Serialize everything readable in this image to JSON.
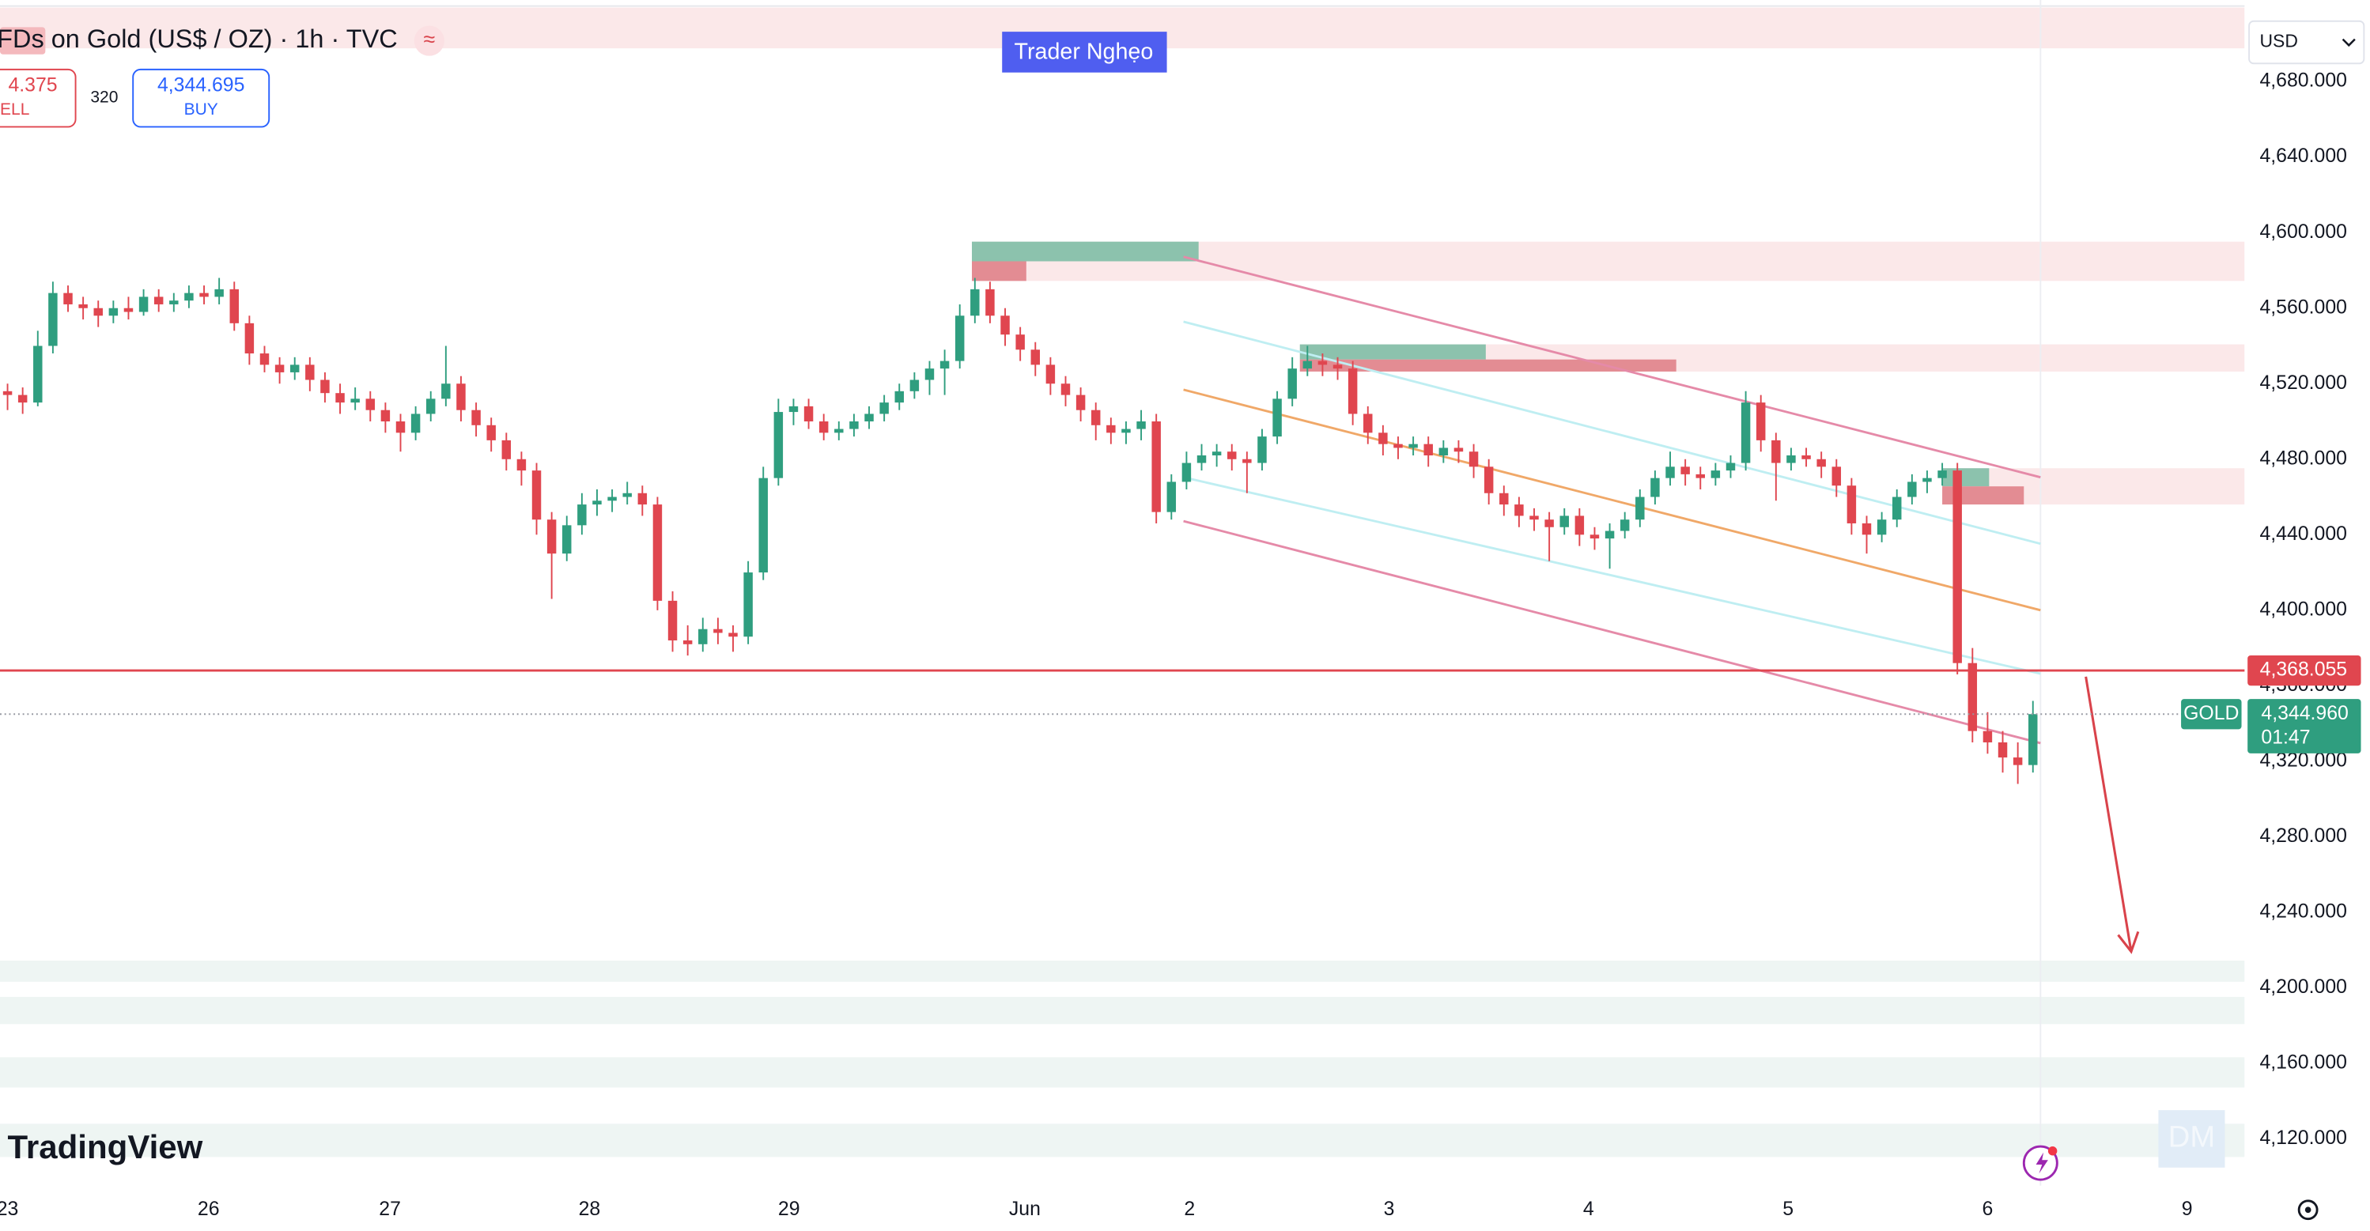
{
  "header": {
    "title": "FDs on Gold (US$ / OZ) · 1h · TVC",
    "sell_price": "4.375",
    "sell_label": "ELL",
    "spread": "320",
    "buy_price": "4,344.695",
    "buy_label": "BUY",
    "badge": "Trader Nghẹo",
    "currency": "USD",
    "logo": "TradingView",
    "watermark": "DM"
  },
  "chart_data": {
    "type": "candlestick",
    "up_color": "#2f9e7f",
    "down_color": "#e0464f",
    "grid": false,
    "xlim": [
      0,
      148.5
    ],
    "ylim": [
      4095.2,
      4723.2
    ],
    "xticks": [
      {
        "value": 0.5,
        "label": "23"
      },
      {
        "value": 13.8,
        "label": "26"
      },
      {
        "value": 25.8,
        "label": "27"
      },
      {
        "value": 39,
        "label": "28"
      },
      {
        "value": 52.2,
        "label": "29"
      },
      {
        "value": 67.8,
        "label": "Jun"
      },
      {
        "value": 78.7,
        "label": "2"
      },
      {
        "value": 91.9,
        "label": "3"
      },
      {
        "value": 105.1,
        "label": "4"
      },
      {
        "value": 118.3,
        "label": "5"
      },
      {
        "value": 131.5,
        "label": "6"
      },
      {
        "value": 144.7,
        "label": "9"
      }
    ],
    "yticks": [
      {
        "value": 4680,
        "label": "4,680.000"
      },
      {
        "value": 4640,
        "label": "4,640.000"
      },
      {
        "value": 4600,
        "label": "4,600.000"
      },
      {
        "value": 4560,
        "label": "4,560.000"
      },
      {
        "value": 4520,
        "label": "4,520.000"
      },
      {
        "value": 4480,
        "label": "4,480.000"
      },
      {
        "value": 4440,
        "label": "4,440.000"
      },
      {
        "value": 4400,
        "label": "4,400.000"
      },
      {
        "value": 4360,
        "label": "4,360.000"
      },
      {
        "value": 4320,
        "label": "4,320.000"
      },
      {
        "value": 4280,
        "label": "4,280.000"
      },
      {
        "value": 4240,
        "label": "4,240.000"
      },
      {
        "value": 4200,
        "label": "4,200.000"
      },
      {
        "value": 4160,
        "label": "4,160.000"
      },
      {
        "value": 4120,
        "label": "4,120.000"
      }
    ],
    "ohlc": [
      [
        4516,
        4520,
        4506,
        4514
      ],
      [
        4514,
        4518,
        4504,
        4510
      ],
      [
        4510,
        4548,
        4508,
        4540
      ],
      [
        4540,
        4574,
        4536,
        4568
      ],
      [
        4568,
        4572,
        4558,
        4562
      ],
      [
        4562,
        4566,
        4554,
        4560
      ],
      [
        4560,
        4564,
        4550,
        4556
      ],
      [
        4556,
        4564,
        4552,
        4560
      ],
      [
        4560,
        4566,
        4554,
        4558
      ],
      [
        4558,
        4570,
        4556,
        4566
      ],
      [
        4566,
        4570,
        4558,
        4562
      ],
      [
        4562,
        4568,
        4558,
        4564
      ],
      [
        4564,
        4572,
        4560,
        4568
      ],
      [
        4568,
        4572,
        4562,
        4566
      ],
      [
        4566,
        4576,
        4562,
        4570
      ],
      [
        4570,
        4574,
        4548,
        4552
      ],
      [
        4552,
        4556,
        4530,
        4536
      ],
      [
        4536,
        4540,
        4526,
        4530
      ],
      [
        4530,
        4534,
        4520,
        4526
      ],
      [
        4526,
        4534,
        4522,
        4530
      ],
      [
        4530,
        4534,
        4516,
        4522
      ],
      [
        4522,
        4526,
        4510,
        4515
      ],
      [
        4515,
        4520,
        4504,
        4510
      ],
      [
        4510,
        4518,
        4506,
        4512
      ],
      [
        4512,
        4516,
        4500,
        4506
      ],
      [
        4506,
        4510,
        4494,
        4500
      ],
      [
        4500,
        4504,
        4484,
        4494
      ],
      [
        4494,
        4508,
        4490,
        4504
      ],
      [
        4504,
        4516,
        4500,
        4512
      ],
      [
        4512,
        4540,
        4508,
        4520
      ],
      [
        4520,
        4524,
        4500,
        4506
      ],
      [
        4506,
        4510,
        4492,
        4498
      ],
      [
        4498,
        4502,
        4484,
        4490
      ],
      [
        4490,
        4494,
        4474,
        4480
      ],
      [
        4480,
        4484,
        4466,
        4474
      ],
      [
        4474,
        4478,
        4440,
        4448
      ],
      [
        4448,
        4452,
        4406,
        4430
      ],
      [
        4430,
        4450,
        4426,
        4445
      ],
      [
        4445,
        4462,
        4440,
        4456
      ],
      [
        4456,
        4464,
        4450,
        4458
      ],
      [
        4458,
        4464,
        4452,
        4460
      ],
      [
        4460,
        4468,
        4456,
        4462
      ],
      [
        4462,
        4466,
        4450,
        4456
      ],
      [
        4456,
        4460,
        4400,
        4405
      ],
      [
        4405,
        4410,
        4378,
        4384
      ],
      [
        4384,
        4392,
        4376,
        4382
      ],
      [
        4382,
        4396,
        4378,
        4390
      ],
      [
        4390,
        4396,
        4382,
        4388
      ],
      [
        4388,
        4392,
        4378,
        4386
      ],
      [
        4386,
        4426,
        4382,
        4420
      ],
      [
        4420,
        4476,
        4416,
        4470
      ],
      [
        4470,
        4512,
        4466,
        4505
      ],
      [
        4505,
        4512,
        4498,
        4508
      ],
      [
        4508,
        4512,
        4496,
        4500
      ],
      [
        4500,
        4504,
        4490,
        4494
      ],
      [
        4494,
        4500,
        4490,
        4496
      ],
      [
        4496,
        4504,
        4492,
        4500
      ],
      [
        4500,
        4508,
        4496,
        4504
      ],
      [
        4504,
        4514,
        4500,
        4510
      ],
      [
        4510,
        4520,
        4506,
        4516
      ],
      [
        4516,
        4526,
        4512,
        4522
      ],
      [
        4522,
        4532,
        4514,
        4528
      ],
      [
        4528,
        4538,
        4514,
        4532
      ],
      [
        4532,
        4562,
        4528,
        4556
      ],
      [
        4556,
        4576,
        4552,
        4570
      ],
      [
        4570,
        4574,
        4552,
        4556
      ],
      [
        4556,
        4560,
        4540,
        4546
      ],
      [
        4546,
        4550,
        4532,
        4538
      ],
      [
        4538,
        4542,
        4524,
        4530
      ],
      [
        4530,
        4534,
        4514,
        4520
      ],
      [
        4520,
        4524,
        4508,
        4514
      ],
      [
        4514,
        4518,
        4500,
        4506
      ],
      [
        4506,
        4510,
        4490,
        4498
      ],
      [
        4498,
        4502,
        4488,
        4494
      ],
      [
        4494,
        4500,
        4488,
        4496
      ],
      [
        4496,
        4506,
        4490,
        4500
      ],
      [
        4500,
        4504,
        4446,
        4452
      ],
      [
        4452,
        4472,
        4448,
        4468
      ],
      [
        4468,
        4484,
        4464,
        4478
      ],
      [
        4478,
        4488,
        4474,
        4482
      ],
      [
        4482,
        4488,
        4476,
        4484
      ],
      [
        4484,
        4488,
        4474,
        4480
      ],
      [
        4480,
        4484,
        4462,
        4478
      ],
      [
        4478,
        4496,
        4474,
        4492
      ],
      [
        4492,
        4516,
        4488,
        4512
      ],
      [
        4512,
        4534,
        4508,
        4528
      ],
      [
        4528,
        4540,
        4524,
        4532
      ],
      [
        4532,
        4536,
        4524,
        4530
      ],
      [
        4530,
        4534,
        4522,
        4528
      ],
      [
        4528,
        4532,
        4498,
        4504
      ],
      [
        4504,
        4508,
        4488,
        4494
      ],
      [
        4494,
        4498,
        4482,
        4488
      ],
      [
        4488,
        4492,
        4480,
        4486
      ],
      [
        4486,
        4492,
        4482,
        4488
      ],
      [
        4488,
        4492,
        4476,
        4482
      ],
      [
        4482,
        4490,
        4478,
        4486
      ],
      [
        4486,
        4490,
        4478,
        4484
      ],
      [
        4484,
        4488,
        4470,
        4476
      ],
      [
        4476,
        4480,
        4456,
        4462
      ],
      [
        4462,
        4466,
        4450,
        4456
      ],
      [
        4456,
        4460,
        4444,
        4450
      ],
      [
        4450,
        4454,
        4442,
        4448
      ],
      [
        4448,
        4452,
        4426,
        4444
      ],
      [
        4444,
        4454,
        4440,
        4450
      ],
      [
        4450,
        4454,
        4434,
        4440
      ],
      [
        4440,
        4444,
        4432,
        4438
      ],
      [
        4438,
        4446,
        4422,
        4442
      ],
      [
        4442,
        4452,
        4438,
        4448
      ],
      [
        4448,
        4464,
        4444,
        4460
      ],
      [
        4460,
        4474,
        4456,
        4470
      ],
      [
        4470,
        4484,
        4466,
        4476
      ],
      [
        4476,
        4480,
        4466,
        4472
      ],
      [
        4472,
        4476,
        4464,
        4470
      ],
      [
        4470,
        4478,
        4466,
        4474
      ],
      [
        4474,
        4482,
        4470,
        4478
      ],
      [
        4478,
        4516,
        4474,
        4510
      ],
      [
        4510,
        4514,
        4484,
        4490
      ],
      [
        4490,
        4494,
        4458,
        4478
      ],
      [
        4478,
        4486,
        4474,
        4482
      ],
      [
        4482,
        4486,
        4476,
        4480
      ],
      [
        4480,
        4484,
        4470,
        4476
      ],
      [
        4476,
        4480,
        4460,
        4466
      ],
      [
        4466,
        4470,
        4440,
        4446
      ],
      [
        4446,
        4450,
        4430,
        4440
      ],
      [
        4440,
        4452,
        4436,
        4448
      ],
      [
        4448,
        4464,
        4444,
        4460
      ],
      [
        4460,
        4472,
        4456,
        4468
      ],
      [
        4468,
        4474,
        4462,
        4470
      ],
      [
        4470,
        4478,
        4466,
        4474
      ],
      [
        4474,
        4478,
        4366,
        4372
      ],
      [
        4372,
        4380,
        4330,
        4336
      ],
      [
        4336,
        4346,
        4324,
        4330
      ],
      [
        4330,
        4336,
        4314,
        4322
      ],
      [
        4322,
        4330,
        4308,
        4318
      ],
      [
        4318,
        4352,
        4314,
        4344.96
      ]
    ],
    "zones": [
      {
        "x": [
          0,
          148.5
        ],
        "y": [
          4697.6,
          4719.2
        ],
        "color": "#fbe8e9"
      },
      {
        "x": [
          64.3,
          148.5
        ],
        "y": [
          4574.4,
          4595.2
        ],
        "color": "#fbe8e9"
      },
      {
        "x": [
          64.3,
          79.3
        ],
        "y": [
          4584.8,
          4595.2
        ],
        "color": "#8cc2ad"
      },
      {
        "x": [
          64.3,
          67.9
        ],
        "y": [
          4574.4,
          4584.8
        ],
        "color": "#e38c93"
      },
      {
        "x": [
          86,
          148.5
        ],
        "y": [
          4526.4,
          4540.8
        ],
        "color": "#fbe8e9"
      },
      {
        "x": [
          86,
          98.3
        ],
        "y": [
          4532.8,
          4540.8
        ],
        "color": "#8cc2ad"
      },
      {
        "x": [
          86,
          110.9
        ],
        "y": [
          4526.4,
          4532.8
        ],
        "color": "#e38c93"
      },
      {
        "x": [
          128.5,
          148.5
        ],
        "y": [
          4456,
          4475.2
        ],
        "color": "#fbe8e9"
      },
      {
        "x": [
          128.5,
          131.6
        ],
        "y": [
          4465.6,
          4475.2
        ],
        "color": "#8cc2ad"
      },
      {
        "x": [
          128.5,
          133.9
        ],
        "y": [
          4456,
          4465.6
        ],
        "color": "#e38c93"
      },
      {
        "x": [
          0,
          148.5
        ],
        "y": [
          4203.2,
          4214.4
        ],
        "color": "#eef5f3"
      },
      {
        "x": [
          0,
          148.5
        ],
        "y": [
          4180.8,
          4195.2
        ],
        "color": "#eef5f3"
      },
      {
        "x": [
          0,
          148.5
        ],
        "y": [
          4147.2,
          4163.2
        ],
        "color": "#eef5f3"
      },
      {
        "x": [
          0,
          148.5
        ],
        "y": [
          4110.4,
          4128
        ],
        "color": "#eef5f3"
      }
    ],
    "lines": [
      {
        "x": [
          78.3,
          135
        ],
        "y": [
          4587.2,
          4470.4
        ],
        "color": "#e58aa8"
      },
      {
        "x": [
          78.3,
          135
        ],
        "y": [
          4447.2,
          4329.6
        ],
        "color": "#e58aa8"
      },
      {
        "x": [
          78.3,
          135
        ],
        "y": [
          4516.8,
          4400
        ],
        "color": "#f0a868"
      },
      {
        "x": [
          78.3,
          135
        ],
        "y": [
          4552.8,
          4435.2
        ],
        "color": "#bfeef2"
      },
      {
        "x": [
          78.3,
          135
        ],
        "y": [
          4470.4,
          4366.4
        ],
        "color": "#bfeef2"
      }
    ],
    "arrow": {
      "x": [
        138,
        141
      ],
      "y": [
        4364.8,
        4219.2
      ],
      "color": "#d9434b"
    },
    "level": {
      "value": 4368.055,
      "label": "4,368.055",
      "color": "#e0464f"
    },
    "last": {
      "value": 4344.96,
      "label": "4,344.960",
      "symbol": "GOLD",
      "countdown": "01:47",
      "color": "#2f9e7f"
    }
  }
}
